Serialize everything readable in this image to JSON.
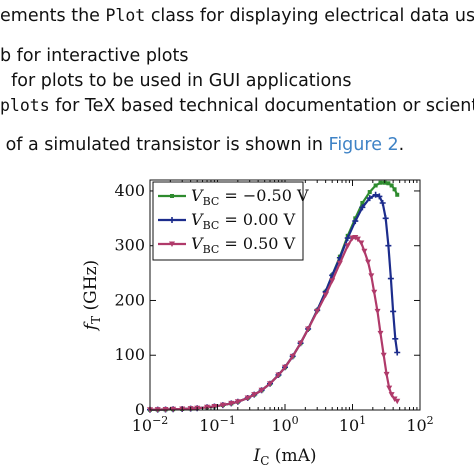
{
  "document": {
    "line1": {
      "pre": "ements the ",
      "code": "Plot",
      "post": " class for displaying electrical data usin"
    },
    "line2": {
      "text": "b for interactive plots"
    },
    "line3": {
      "text": "  for plots to be used in GUI applications"
    },
    "line4": {
      "code": "plots",
      "post": " for TeX based technical documentation or scient"
    },
    "line5": {
      "pre": " of a simulated transistor is shown in ",
      "link": "Figure 2",
      "post": "."
    }
  },
  "chart_data": {
    "type": "line",
    "xlabel": "I_C (mA)",
    "ylabel": "f_T (GHz)",
    "xscale": "log",
    "xlim": [
      0.01,
      100
    ],
    "ylim": [
      0,
      420
    ],
    "xticks": [
      {
        "value": 0.01,
        "base": "10",
        "exp": "−2"
      },
      {
        "value": 0.1,
        "base": "10",
        "exp": "−1"
      },
      {
        "value": 1,
        "base": "10",
        "exp": "0"
      },
      {
        "value": 10,
        "base": "10",
        "exp": "1"
      },
      {
        "value": 100,
        "base": "10",
        "exp": "2"
      }
    ],
    "yticks": [
      {
        "value": 0,
        "label": "0"
      },
      {
        "value": 100,
        "label": "100"
      },
      {
        "value": 200,
        "label": "200"
      },
      {
        "value": 300,
        "label": "300"
      },
      {
        "value": 400,
        "label": "400"
      }
    ],
    "legend_position": "top-left",
    "series": [
      {
        "name": "V_BC = −0.50 V",
        "legend_lhs": "V",
        "legend_sub": "BC",
        "legend_rhs": " = −0.50 V",
        "color": "#2e8b2e",
        "marker": "square",
        "x": [
          0.01,
          0.013,
          0.017,
          0.022,
          0.03,
          0.04,
          0.05,
          0.07,
          0.09,
          0.12,
          0.16,
          0.2,
          0.28,
          0.35,
          0.45,
          0.6,
          0.8,
          1,
          1.3,
          1.7,
          2.2,
          3,
          4,
          5,
          6.5,
          8.5,
          11,
          14,
          18,
          22,
          26,
          30,
          34,
          38,
          42,
          46
        ],
        "y": [
          0.5,
          0.7,
          1,
          1.3,
          1.8,
          2.5,
          3.3,
          5,
          6.5,
          9,
          12,
          15,
          22,
          28,
          36,
          48,
          64,
          78,
          98,
          122,
          148,
          182,
          216,
          246,
          280,
          318,
          350,
          378,
          398,
          410,
          415,
          415,
          414,
          410,
          403,
          393
        ]
      },
      {
        "name": "V_BC = 0.00 V",
        "legend_lhs": "V",
        "legend_sub": "BC",
        "legend_rhs": " = 0.00 V",
        "color": "#1c2c8c",
        "marker": "plus",
        "x": [
          0.01,
          0.013,
          0.017,
          0.022,
          0.03,
          0.04,
          0.05,
          0.07,
          0.09,
          0.12,
          0.16,
          0.2,
          0.28,
          0.35,
          0.45,
          0.6,
          0.8,
          1,
          1.3,
          1.7,
          2.2,
          3,
          4,
          5,
          6.5,
          8.5,
          11,
          14,
          18,
          22,
          25,
          28,
          31,
          34,
          37,
          40,
          43,
          46
        ],
        "y": [
          0.5,
          0.7,
          1,
          1.3,
          1.8,
          2.5,
          3.3,
          5,
          6.5,
          9,
          12,
          15,
          22,
          28,
          36,
          48,
          64,
          78,
          98,
          122,
          148,
          182,
          216,
          246,
          278,
          314,
          345,
          370,
          387,
          393,
          390,
          378,
          350,
          300,
          240,
          180,
          130,
          105
        ]
      },
      {
        "name": "V_BC = 0.50 V",
        "legend_lhs": "V",
        "legend_sub": "BC",
        "legend_rhs": " = 0.50 V",
        "color": "#b03a6a",
        "marker": "triangle-down",
        "x": [
          0.01,
          0.013,
          0.017,
          0.022,
          0.03,
          0.04,
          0.05,
          0.07,
          0.09,
          0.12,
          0.16,
          0.2,
          0.28,
          0.35,
          0.45,
          0.6,
          0.8,
          1,
          1.3,
          1.7,
          2.2,
          3,
          4,
          5,
          6.5,
          8.5,
          10,
          11,
          12,
          13.5,
          15,
          17,
          19,
          21,
          23.5,
          26,
          29,
          32,
          35,
          38,
          42,
          46
        ],
        "y": [
          0.5,
          0.7,
          1,
          1.3,
          1.8,
          2.5,
          3.3,
          5,
          6.5,
          9,
          12,
          15,
          22,
          28,
          36,
          48,
          64,
          78,
          98,
          122,
          148,
          180,
          210,
          236,
          268,
          300,
          314,
          315,
          312,
          305,
          290,
          270,
          245,
          215,
          180,
          140,
          100,
          65,
          40,
          28,
          20,
          16
        ]
      }
    ]
  }
}
